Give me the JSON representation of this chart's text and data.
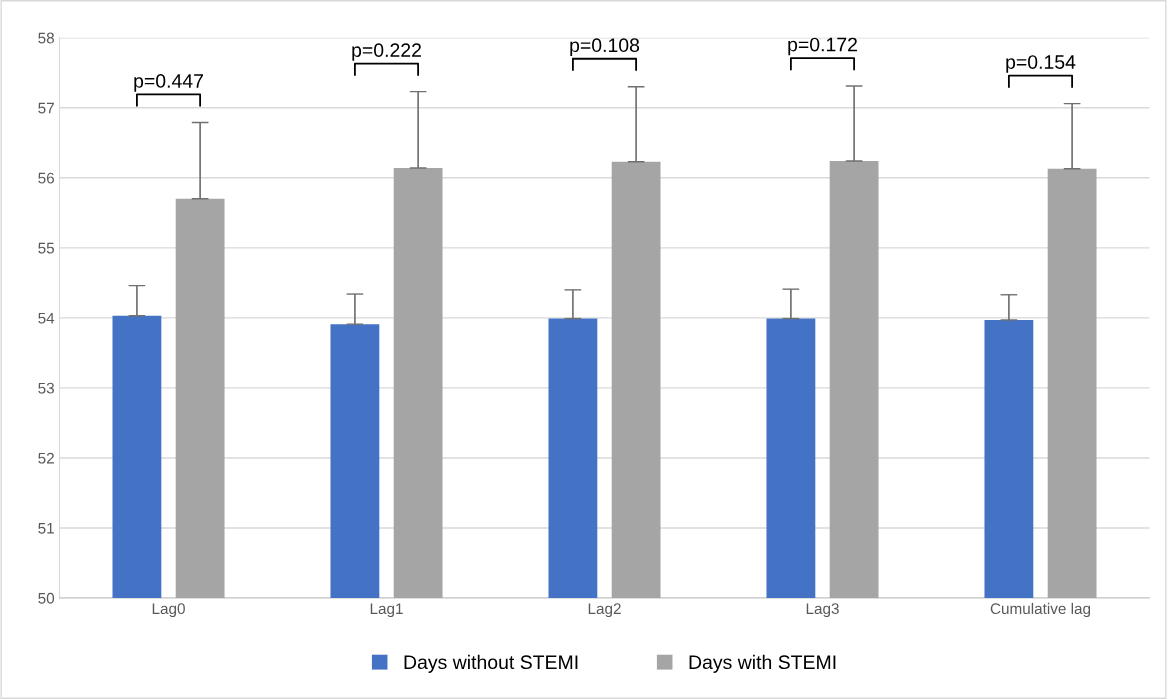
{
  "chart_data": {
    "type": "bar",
    "categories": [
      "Lag0",
      "Lag1",
      "Lag2",
      "Lag3",
      "Cumulative lag"
    ],
    "series": [
      {
        "name": "Days without STEMI",
        "color": "#4472c4",
        "values": [
          54.03,
          53.91,
          53.99,
          53.99,
          53.97
        ],
        "errors": [
          [
            54.03,
            54.46
          ],
          [
            53.91,
            54.34
          ],
          [
            53.99,
            54.4
          ],
          [
            53.99,
            54.41
          ],
          [
            53.97,
            54.33
          ]
        ]
      },
      {
        "name": "Days with STEMI",
        "color": "#a5a5a5",
        "values": [
          55.7,
          56.14,
          56.23,
          56.24,
          56.13
        ],
        "errors": [
          [
            55.7,
            56.79
          ],
          [
            56.14,
            57.23
          ],
          [
            56.23,
            57.3
          ],
          [
            56.24,
            57.31
          ],
          [
            56.13,
            57.06
          ]
        ]
      }
    ],
    "annotations": [
      "p=0.447",
      "p=0.222",
      "p=0.108",
      "p=0.172",
      "p=0.154"
    ],
    "ylim": [
      50,
      58
    ],
    "yticks": [
      50,
      51,
      52,
      53,
      54,
      55,
      56,
      57,
      58
    ],
    "grid": "y",
    "legend": "bottom"
  }
}
